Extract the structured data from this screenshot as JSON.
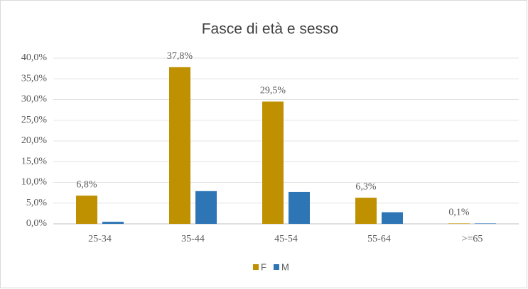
{
  "chart_data": {
    "type": "bar",
    "title": "Fasce di età e sesso",
    "categories": [
      "25-34",
      "35-44",
      "45-54",
      "55-64",
      ">=65"
    ],
    "series": [
      {
        "name": "F",
        "color": "#bf9000",
        "values": [
          6.8,
          37.8,
          29.5,
          6.3,
          0.1
        ],
        "value_labels": [
          "6,8%",
          "37,8%",
          "29,5%",
          "6,3%",
          "0,1%"
        ]
      },
      {
        "name": "M",
        "color": "#2e75b6",
        "values": [
          0.5,
          7.9,
          7.7,
          2.8,
          0.1
        ]
      }
    ],
    "ylim": [
      0,
      40
    ],
    "yticks": [
      {
        "value": 0,
        "label": "0,0%"
      },
      {
        "value": 5,
        "label": "5,0%"
      },
      {
        "value": 10,
        "label": "10,0%"
      },
      {
        "value": 15,
        "label": "15,0%"
      },
      {
        "value": 20,
        "label": "20,0%"
      },
      {
        "value": 25,
        "label": "25,0%"
      },
      {
        "value": 30,
        "label": "30,0%"
      },
      {
        "value": 35,
        "label": "35,0%"
      },
      {
        "value": 40,
        "label": "40,0%"
      }
    ],
    "grid": true,
    "legend": "bottom"
  }
}
